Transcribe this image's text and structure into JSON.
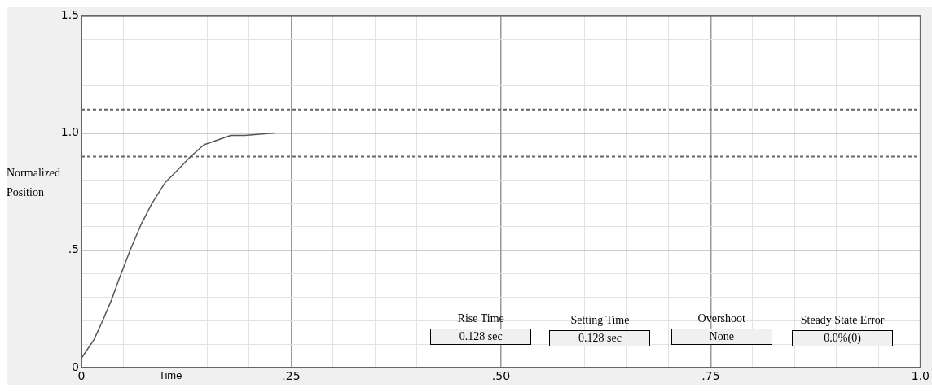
{
  "chart_data": {
    "type": "line",
    "xlabel": "Time",
    "ylabel": "Normalized Position",
    "x": [
      0,
      0.015,
      0.024,
      0.036,
      0.045,
      0.058,
      0.071,
      0.084,
      0.1,
      0.114,
      0.13,
      0.146,
      0.162,
      0.178,
      0.195,
      0.23
    ],
    "series": [
      {
        "color": "#555555",
        "values": [
          0.04,
          0.12,
          0.19,
          0.29,
          0.38,
          0.5,
          0.61,
          0.7,
          0.79,
          0.84,
          0.9,
          0.95,
          0.97,
          0.99,
          0.99,
          1.0
        ]
      }
    ],
    "xlim": [
      0,
      1
    ],
    "ylim": [
      0,
      1.5
    ],
    "xticks": [
      0,
      {
        "value": 0.05,
        "label": null
      },
      {
        "value": 0.1,
        "label": null
      },
      {
        "value": 0.15,
        "label": null
      },
      {
        "value": 0.2,
        "label": null
      },
      {
        "value": 0.25,
        "label": ".25"
      },
      {
        "value": 0.3,
        "label": null
      },
      {
        "value": 0.35,
        "label": null
      },
      {
        "value": 0.4,
        "label": null
      },
      {
        "value": 0.45,
        "label": null
      },
      {
        "value": 0.5,
        "label": ".50"
      },
      {
        "value": 0.55,
        "label": null
      },
      {
        "value": 0.6,
        "label": null
      },
      {
        "value": 0.65,
        "label": null
      },
      {
        "value": 0.7,
        "label": null
      },
      {
        "value": 0.75,
        "label": ".75"
      },
      {
        "value": 0.8,
        "label": null
      },
      {
        "value": 0.85,
        "label": null
      },
      {
        "value": 0.9,
        "label": null
      },
      {
        "value": 0.95,
        "label": null
      },
      {
        "value": 1,
        "label": "1.0"
      }
    ],
    "yticks": [
      0,
      {
        "value": 0.1,
        "label": null
      },
      {
        "value": 0.2,
        "label": null
      },
      {
        "value": 0.3,
        "label": null
      },
      {
        "value": 0.4,
        "label": null
      },
      {
        "value": 0.5,
        "label": ".5"
      },
      {
        "value": 0.6,
        "label": null
      },
      {
        "value": 0.7,
        "label": null
      },
      {
        "value": 0.8,
        "label": null
      },
      {
        "value": 1,
        "label": "1.0"
      },
      {
        "value": 1.2,
        "label": null
      },
      {
        "value": 1.3,
        "label": null
      },
      {
        "value": 1.4,
        "label": null
      },
      {
        "value": 1.5,
        "label": "1.5"
      }
    ],
    "ref_lines": [
      {
        "axis": "y",
        "value": 1.1,
        "line_style": "dashed",
        "color": "#666666"
      },
      {
        "axis": "y",
        "value": 0.9,
        "line_style": "dashed",
        "color": "#666666"
      }
    ],
    "annotations": [
      "Rise Time",
      "0.128 sec",
      "Setting Time",
      "0.128 sec",
      "Overshoot",
      "None",
      "Steady State Error",
      "0.0%(0)"
    ],
    "grid": true,
    "legend": false,
    "marker": "none",
    "line_style": "solid"
  }
}
